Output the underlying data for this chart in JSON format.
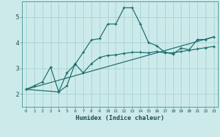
{
  "title": "",
  "xlabel": "Humidex (Indice chaleur)",
  "background_color": "#cceaea",
  "grid_color": "#aad4d4",
  "line_color": "#1a6b6b",
  "xlim": [
    -0.5,
    23.5
  ],
  "ylim": [
    1.5,
    5.6
  ],
  "xticks": [
    0,
    1,
    2,
    3,
    4,
    5,
    6,
    7,
    8,
    9,
    10,
    11,
    12,
    13,
    14,
    15,
    16,
    17,
    18,
    19,
    20,
    21,
    22,
    23
  ],
  "yticks": [
    2,
    3,
    4,
    5
  ],
  "line1_x": [
    0,
    1,
    2,
    3,
    4,
    5,
    6,
    7,
    8,
    9,
    10,
    11,
    12,
    13,
    14,
    15,
    16,
    17,
    18,
    19,
    20,
    21,
    22,
    23
  ],
  "line1_y": [
    2.18,
    2.32,
    2.47,
    3.05,
    2.08,
    2.82,
    3.15,
    3.62,
    4.1,
    4.15,
    4.72,
    4.72,
    5.35,
    5.35,
    4.72,
    4.0,
    3.88,
    3.62,
    3.55,
    3.78,
    3.72,
    4.12,
    4.12,
    4.22
  ],
  "line2_x": [
    0,
    4,
    5,
    6,
    7,
    8,
    9,
    10,
    11,
    12,
    13,
    14,
    15,
    16,
    17,
    18,
    19,
    20,
    21,
    22,
    23
  ],
  "line2_y": [
    2.18,
    2.08,
    2.32,
    3.18,
    2.82,
    3.18,
    3.42,
    3.5,
    3.52,
    3.58,
    3.62,
    3.62,
    3.6,
    3.65,
    3.6,
    3.6,
    3.65,
    3.7,
    3.75,
    3.8,
    3.85
  ],
  "line3_x": [
    0,
    23
  ],
  "line3_y": [
    2.18,
    4.22
  ]
}
